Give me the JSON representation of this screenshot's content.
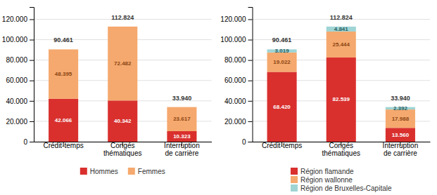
{
  "chart_data": [
    {
      "type": "bar",
      "stacked": true,
      "categories": [
        "Crédit-temps",
        "Congés\nthématiques",
        "Interruption\nde carrière"
      ],
      "series": [
        {
          "name": "Hommes",
          "color": "#d9302e",
          "values": [
            42066,
            40342,
            10323
          ],
          "value_labels": [
            "42.066",
            "40.342",
            "10.323"
          ]
        },
        {
          "name": "Femmes",
          "color": "#f5a96e",
          "values": [
            48395,
            72482,
            23617
          ],
          "value_labels": [
            "48.395",
            "72.482",
            "23.617"
          ]
        }
      ],
      "totals": [
        90461,
        112824,
        33940
      ],
      "total_labels": [
        "90.461",
        "112.824",
        "33.940"
      ],
      "ylim": [
        0,
        132000
      ],
      "yticks": [
        0,
        {
          "value": 20000,
          "label": "20.000"
        },
        {
          "value": 40000,
          "label": "40.000"
        },
        {
          "value": 60000,
          "label": "60.000"
        },
        {
          "value": 80000,
          "label": "80.000"
        },
        {
          "value": 100000,
          "label": "100.000"
        },
        {
          "value": 120000,
          "label": "120.000"
        }
      ],
      "grid": true,
      "legend": "bottom",
      "data_labels": true
    },
    {
      "type": "bar",
      "stacked": true,
      "categories": [
        "Crédit-temps",
        "Congés\nthématiques",
        "Interruption\nde carrière"
      ],
      "series": [
        {
          "name": "Région flamande",
          "color": "#d9302e",
          "values": [
            68420,
            82539,
            13560
          ],
          "value_labels": [
            "68.420",
            "82.539",
            "13.560"
          ]
        },
        {
          "name": "Région wallonne",
          "color": "#f5a96e",
          "values": [
            19022,
            25444,
            17988
          ],
          "value_labels": [
            "19.022",
            "25.444",
            "17.988"
          ]
        },
        {
          "name": "Région de Bruxelles-Capitale",
          "color": "#9fd4d4",
          "values": [
            3019,
            4841,
            2392
          ],
          "value_labels": [
            "3.019",
            "4.841",
            "2.392"
          ]
        }
      ],
      "totals": [
        90461,
        112824,
        33940
      ],
      "total_labels": [
        "90.461",
        "112.824",
        "33.940"
      ],
      "ylim": [
        0,
        132000
      ],
      "yticks": [
        0,
        {
          "value": 20000,
          "label": "20.000"
        },
        {
          "value": 40000,
          "label": "40.000"
        },
        {
          "value": 60000,
          "label": "60.000"
        },
        {
          "value": 80000,
          "label": "80.000"
        },
        {
          "value": 100000,
          "label": "100.000"
        },
        {
          "value": 120000,
          "label": "120.000"
        }
      ],
      "grid": true,
      "legend": "bottom",
      "data_labels": true
    }
  ]
}
